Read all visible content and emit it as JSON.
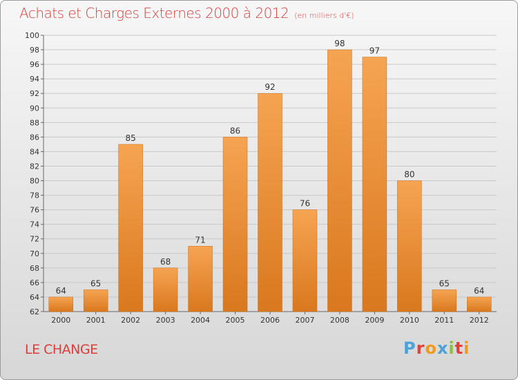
{
  "header": {
    "title": "Achats et Charges Externes 2000 à 2012",
    "subtitle": "(en milliers d'€)"
  },
  "footer": {
    "commune": "LE CHANGE",
    "logo_text": "Proxiti",
    "logo_letters": [
      {
        "ch": "P",
        "color": "#4aa2d9"
      },
      {
        "ch": "r",
        "color": "#e43f3a"
      },
      {
        "ch": "o",
        "color": "#f19a1f"
      },
      {
        "ch": "x",
        "color": "#4aa2d9"
      },
      {
        "ch": "i",
        "color": "#8bbf3c"
      },
      {
        "ch": "t",
        "color": "#e43f3a"
      },
      {
        "ch": "i",
        "color": "#f19a1f"
      }
    ]
  },
  "colors": {
    "title": "#d83f3a",
    "bar_top": "#f6a452",
    "bar_bottom": "#d9781e",
    "grid": "#c8c8c8"
  },
  "chart_data": {
    "type": "bar",
    "title": "Achats et Charges Externes 2000 à 2012",
    "subtitle": "(en milliers d'€)",
    "categories": [
      "2000",
      "2001",
      "2002",
      "2003",
      "2004",
      "2005",
      "2006",
      "2007",
      "2008",
      "2009",
      "2010",
      "2011",
      "2012"
    ],
    "values": [
      64,
      65,
      85,
      68,
      71,
      86,
      92,
      76,
      98,
      97,
      80,
      65,
      64
    ],
    "ylim": [
      62,
      100
    ],
    "yticks": [
      62,
      64,
      66,
      68,
      70,
      72,
      74,
      76,
      78,
      80,
      82,
      84,
      86,
      88,
      90,
      92,
      94,
      96,
      98,
      100
    ],
    "xlabel": "",
    "ylabel": "",
    "grid": true,
    "legend": "none"
  }
}
